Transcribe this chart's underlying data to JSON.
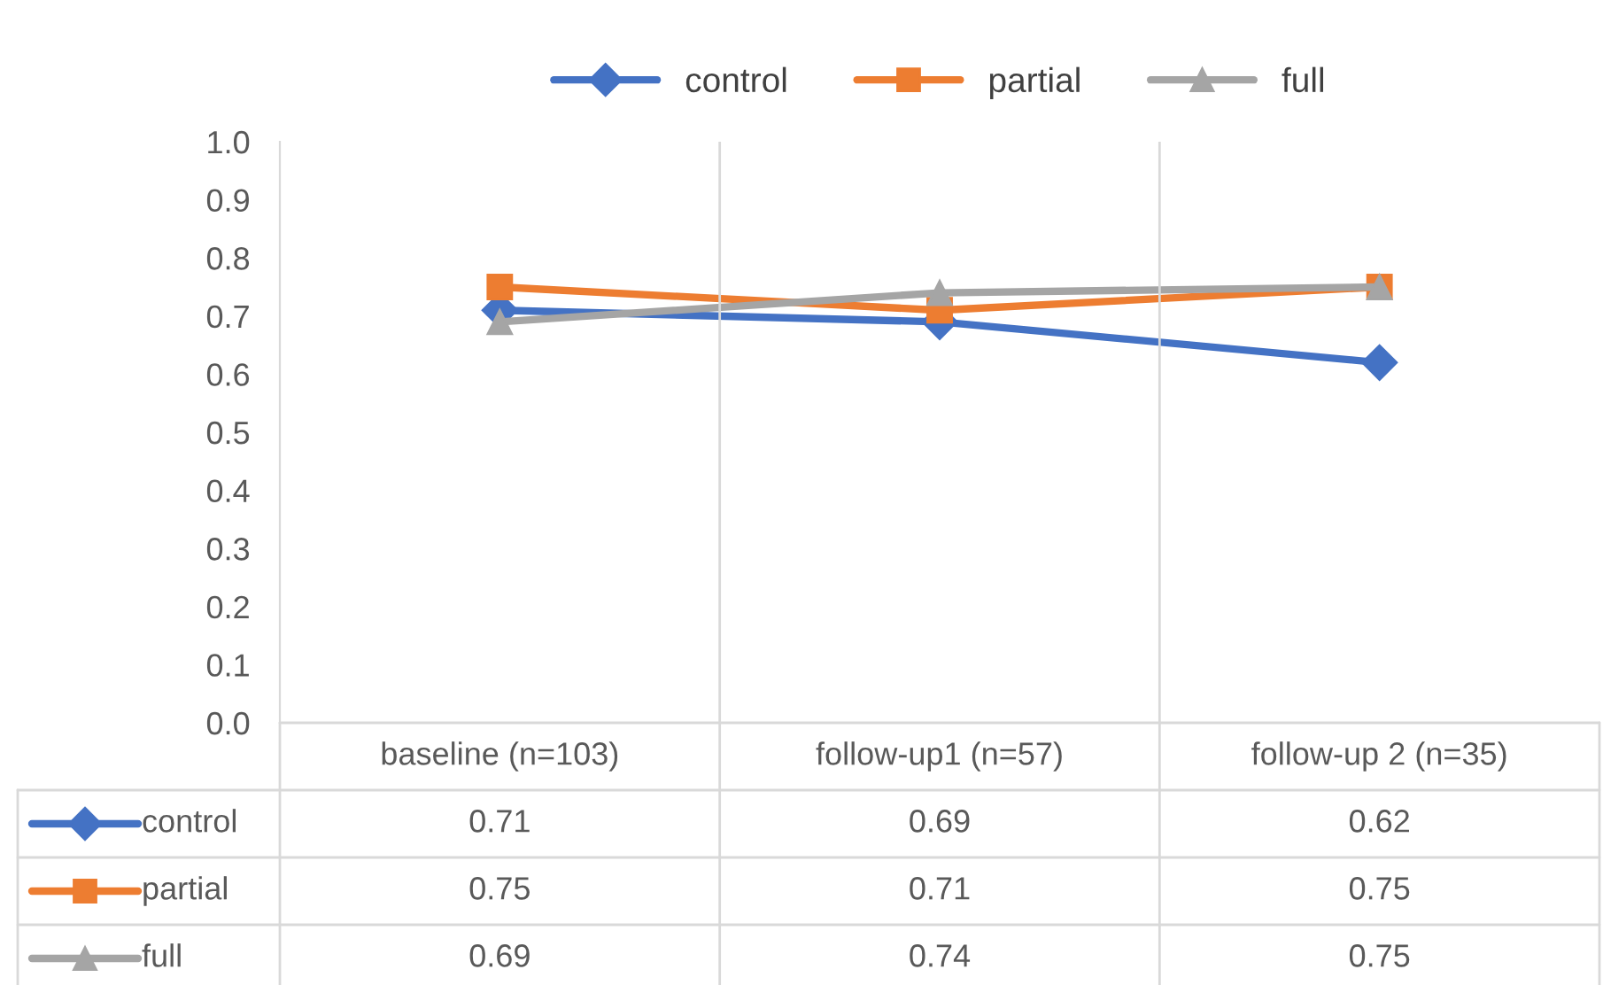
{
  "chart_data": {
    "type": "line",
    "categories": [
      "baseline (n=103)",
      "follow-up1 (n=57)",
      "follow-up 2 (n=35)"
    ],
    "series": [
      {
        "name": "control",
        "color": "#4472c4",
        "marker": "diamond",
        "values": [
          0.71,
          0.69,
          0.62
        ]
      },
      {
        "name": "partial",
        "color": "#ed7d31",
        "marker": "square",
        "values": [
          0.75,
          0.71,
          0.75
        ]
      },
      {
        "name": "full",
        "color": "#a5a5a5",
        "marker": "triangle",
        "values": [
          0.69,
          0.74,
          0.75
        ]
      }
    ],
    "ylim": [
      0,
      1.0
    ],
    "yticks": [
      {
        "value": 0,
        "label": "0.0"
      },
      {
        "value": 0.1,
        "label": "0.1"
      },
      {
        "value": 0.2,
        "label": "0.2"
      },
      {
        "value": 0.3,
        "label": "0.3"
      },
      {
        "value": 0.4,
        "label": "0.4"
      },
      {
        "value": 0.5,
        "label": "0.5"
      },
      {
        "value": 0.6,
        "label": "0.6"
      },
      {
        "value": 0.7,
        "label": "0.7"
      },
      {
        "value": 0.8,
        "label": "0.8"
      },
      {
        "value": 0.9,
        "label": "0.9"
      },
      {
        "value": 1.0,
        "label": "1.0"
      }
    ],
    "grid": "x",
    "legend": "top",
    "data_labels": true,
    "line_style": "solid"
  }
}
